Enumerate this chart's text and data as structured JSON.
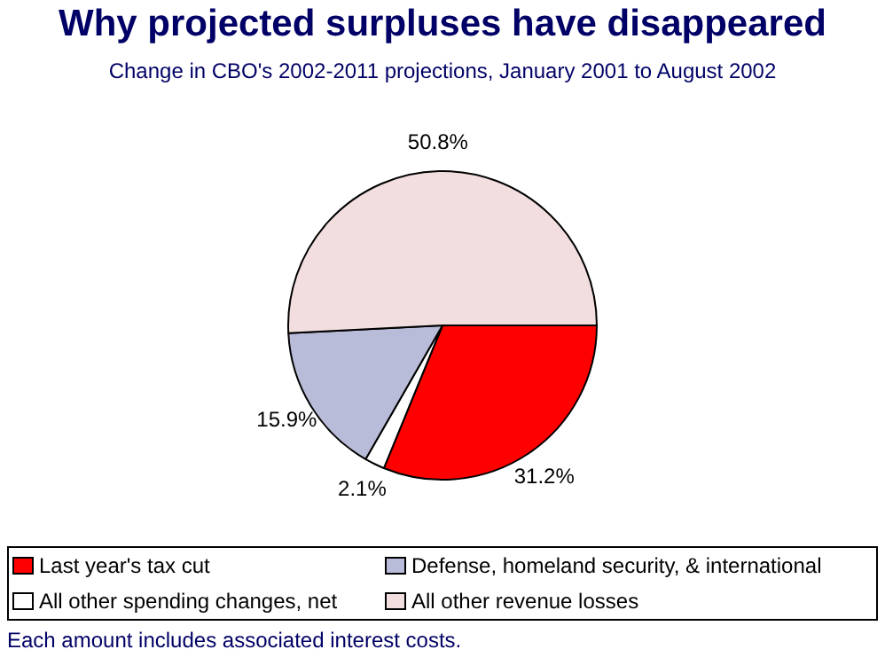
{
  "chart_data": {
    "type": "pie",
    "title": "Why projected surpluses have disappeared",
    "subtitle": "Change in CBO's 2002-2011 projections, January 2001 to August 2002",
    "categories": [
      "Last year's tax cut",
      "All other spending changes, net",
      "Defense, homeland security, & international",
      "All other revenue losses"
    ],
    "values": [
      31.2,
      2.1,
      15.9,
      50.8
    ],
    "value_labels": [
      "31.2%",
      "2.1%",
      "15.9%",
      "50.8%"
    ],
    "colors": [
      "#ff0000",
      "#ffffff",
      "#b8bcd8",
      "#f2dede"
    ],
    "legend": "bottom",
    "annotations": [
      "Each amount includes associated interest costs."
    ]
  }
}
